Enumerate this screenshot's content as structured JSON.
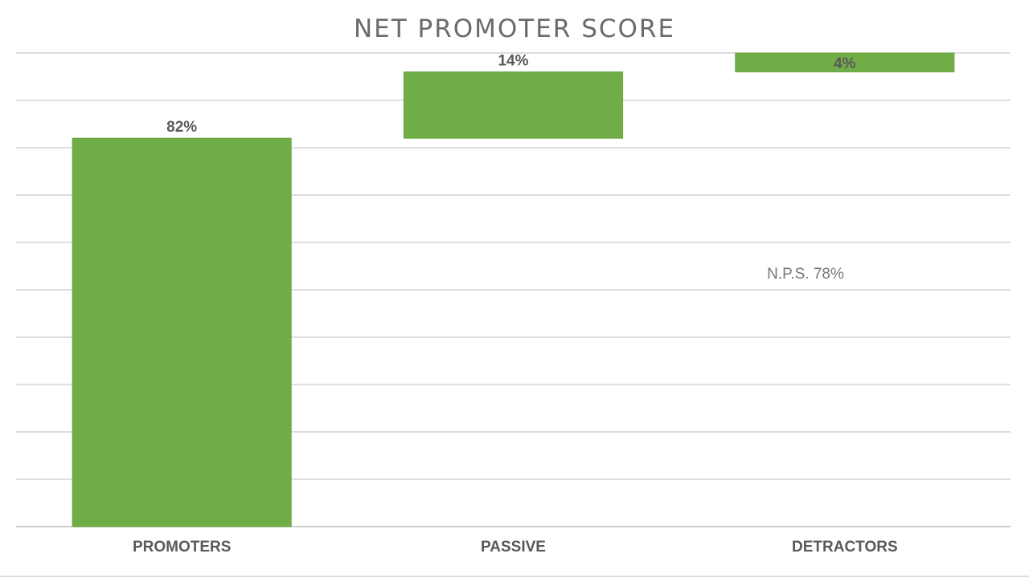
{
  "chart_data": {
    "type": "waterfall",
    "title": "NET PROMOTER SCORE",
    "categories": [
      "PROMOTERS",
      "PASSIVE",
      "DETRACTORS"
    ],
    "values": [
      82,
      14,
      4
    ],
    "value_labels": [
      "82%",
      "14%",
      "4%"
    ],
    "annotation": "N.P.S.  78%",
    "ylim": [
      0,
      100
    ],
    "grid": true,
    "legend": "none",
    "bar_color": "#70ad47"
  }
}
